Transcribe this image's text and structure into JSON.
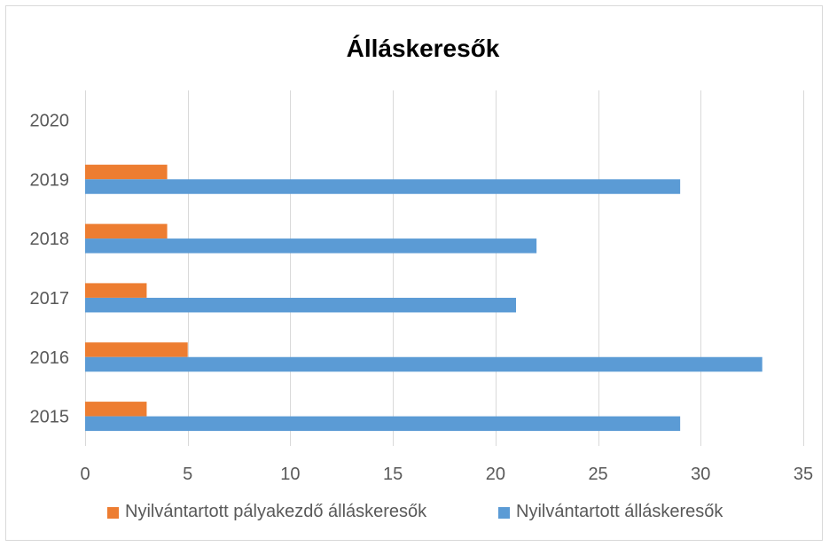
{
  "chart_data": {
    "type": "bar",
    "orientation": "horizontal",
    "title": "Álláskeresők",
    "categories": [
      "2015",
      "2016",
      "2017",
      "2018",
      "2019",
      "2020"
    ],
    "series": [
      {
        "name": "Nyilvántartott pályakezdő álláskeresők",
        "color": "#ed7d31",
        "values": [
          3,
          5,
          3,
          4,
          4,
          null
        ]
      },
      {
        "name": "Nyilvántartott álláskeresők",
        "color": "#5b9bd5",
        "values": [
          29,
          33,
          21,
          22,
          29,
          null
        ]
      }
    ],
    "xlim": [
      0,
      35
    ],
    "xticks": [
      0,
      5,
      10,
      15,
      20,
      25,
      30,
      35
    ],
    "xlabel": "",
    "ylabel": "",
    "grid": "vertical",
    "legend_position": "bottom"
  }
}
